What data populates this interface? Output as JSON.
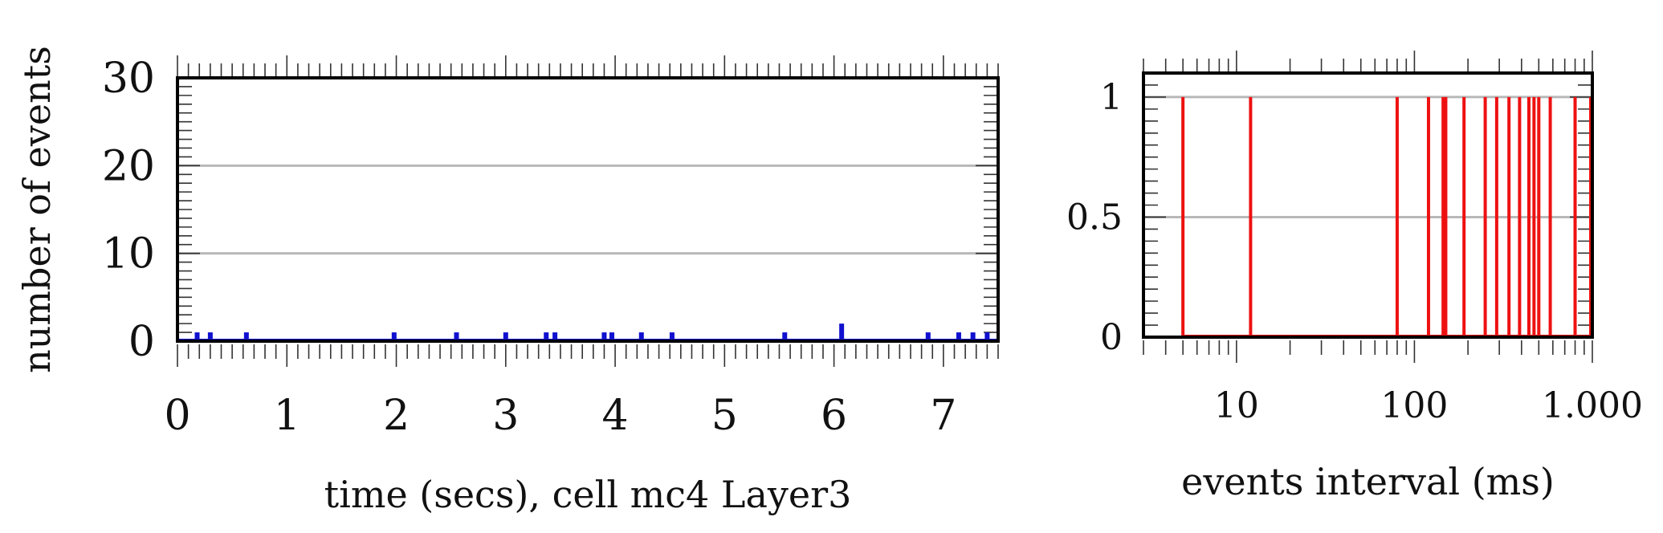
{
  "chart_data": [
    {
      "type": "bar",
      "ylabel": "number of events",
      "xlabel": "time (secs), cell mc4 Layer3",
      "xlim": [
        0,
        7.5
      ],
      "ylim": [
        0,
        30
      ],
      "xticks": [
        "0",
        "1",
        "2",
        "3",
        "4",
        "5",
        "6",
        "7"
      ],
      "yticks": [
        "0",
        "10",
        "20",
        "30"
      ],
      "grid": "horizontal",
      "color": "#1010d0",
      "series": [
        {
          "x": [
            0.18,
            0.3,
            0.63,
            1.98,
            2.55,
            3.0,
            3.37,
            3.45,
            3.9,
            3.97,
            4.24,
            4.52,
            5.55,
            6.07,
            6.86,
            7.14,
            7.27,
            7.4
          ],
          "values": [
            1,
            1,
            1,
            1,
            1,
            1,
            1,
            1,
            1,
            1,
            1,
            1,
            1,
            2,
            1,
            1,
            1,
            1
          ]
        }
      ]
    },
    {
      "type": "bar",
      "xscale": "log",
      "xlabel": "events interval (ms)",
      "xlim": [
        3,
        1000
      ],
      "ylim": [
        0,
        1.1
      ],
      "xticks": [
        "10",
        "100",
        "1.000"
      ],
      "yticks": [
        "0",
        "0.5",
        "1"
      ],
      "grid": "horizontal",
      "color": "#ee1111",
      "series": [
        {
          "x": [
            5,
            12,
            80,
            120,
            145,
            150,
            190,
            250,
            290,
            340,
            390,
            440,
            470,
            500,
            580,
            800,
            1000
          ],
          "values": [
            1,
            1,
            1,
            1,
            1,
            1,
            1,
            1,
            1,
            1,
            1,
            1,
            1,
            1,
            1,
            1,
            1
          ]
        }
      ]
    }
  ]
}
